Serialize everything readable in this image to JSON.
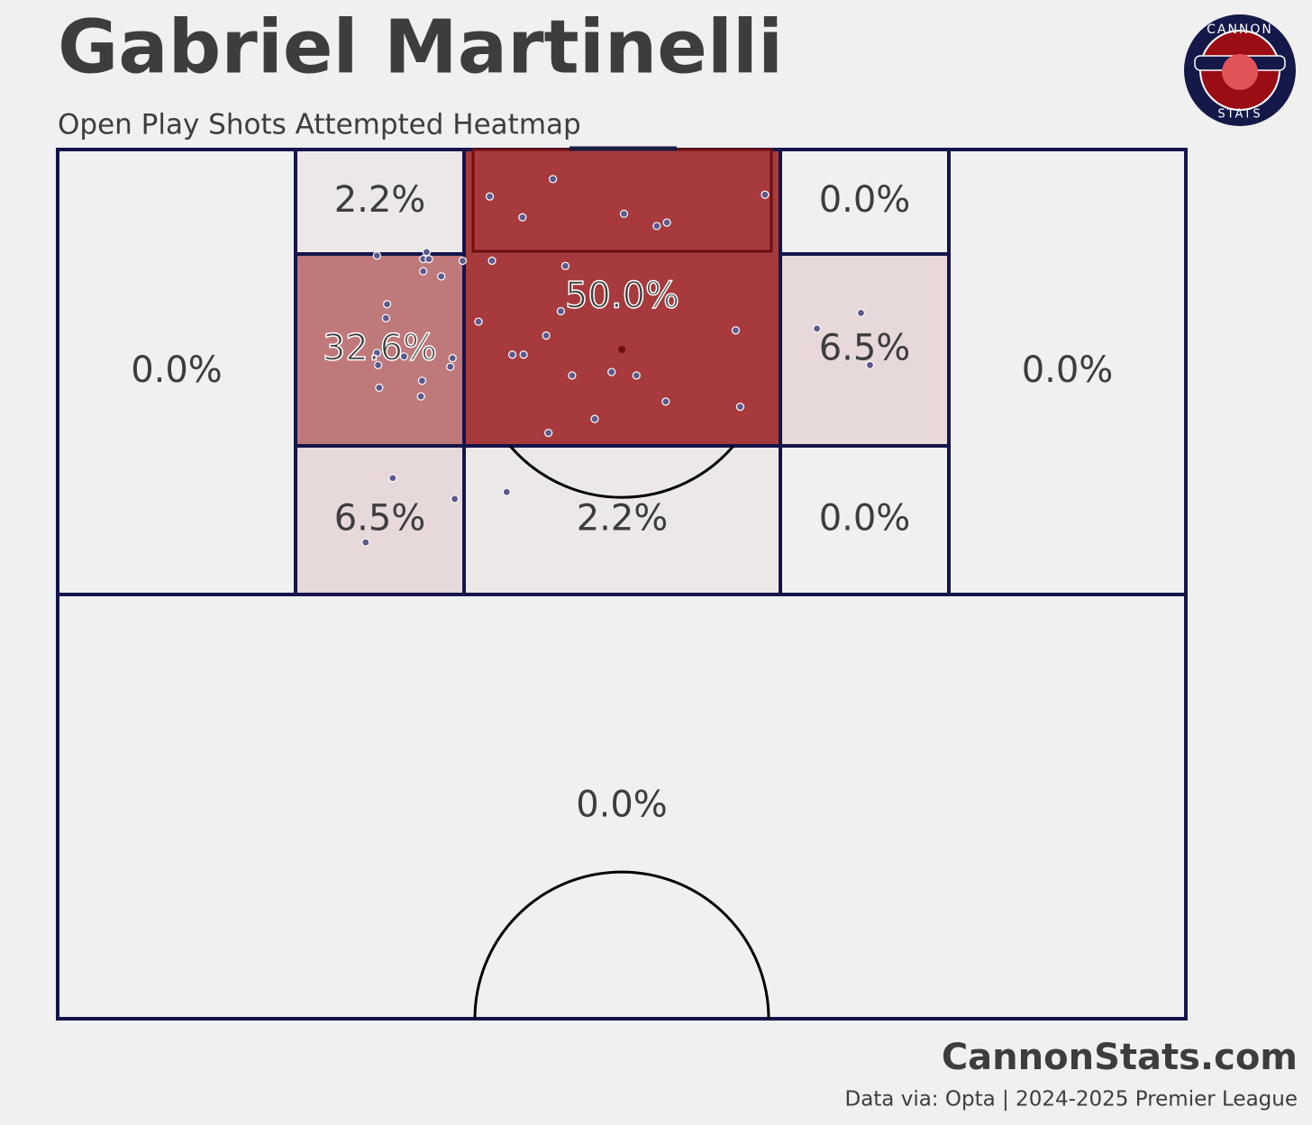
{
  "header": {
    "title": "Gabriel Martinelli",
    "subtitle": "Open Play Shots Attempted Heatmap"
  },
  "logo": {
    "top": "CANNON",
    "bottom": "STATS"
  },
  "zones": [
    {
      "value": 0.0,
      "label": "0.0%"
    },
    {
      "value": 2.2,
      "label": "2.2%"
    },
    {
      "value": 50.0,
      "label": "50.0%"
    },
    {
      "value": 0.0,
      "label": "0.0%"
    },
    {
      "value": 0.0,
      "label": "0.0%"
    },
    {
      "value": 32.6,
      "label": "32.6%"
    },
    {
      "value": 6.5,
      "label": "6.5%"
    },
    {
      "value": 6.5,
      "label": "6.5%"
    },
    {
      "value": 2.2,
      "label": "2.2%"
    },
    {
      "value": 0.0,
      "label": "0.0%"
    },
    {
      "value": 0.0,
      "label": "0.0%"
    }
  ],
  "shots": [
    [
      98.3,
      43.9
    ],
    [
      97.3,
      38.3
    ],
    [
      96.1,
      41.2
    ],
    [
      96.3,
      50.2
    ],
    [
      95.6,
      53.1
    ],
    [
      95.8,
      54.0
    ],
    [
      97.4,
      62.7
    ],
    [
      93.9,
      28.3
    ],
    [
      94.1,
      32.7
    ],
    [
      93.7,
      32.4
    ],
    [
      93.7,
      32.9
    ],
    [
      93.6,
      35.9
    ],
    [
      93.6,
      38.5
    ],
    [
      93.0,
      32.4
    ],
    [
      92.7,
      34.0
    ],
    [
      93.3,
      45.0
    ],
    [
      91.1,
      29.2
    ],
    [
      90.3,
      29.1
    ],
    [
      90.7,
      44.6
    ],
    [
      90.1,
      37.3
    ],
    [
      89.3,
      43.3
    ],
    [
      89.6,
      60.1
    ],
    [
      89.7,
      67.3
    ],
    [
      90.6,
      71.2
    ],
    [
      88.3,
      28.3
    ],
    [
      88.1,
      30.7
    ],
    [
      88.0,
      35.0
    ],
    [
      87.5,
      34.8
    ],
    [
      88.2,
      40.3
    ],
    [
      88.2,
      41.3
    ],
    [
      87.6,
      28.4
    ],
    [
      86.7,
      32.3
    ],
    [
      86.3,
      28.5
    ],
    [
      85.8,
      32.2
    ],
    [
      87.0,
      45.6
    ],
    [
      87.2,
      49.1
    ],
    [
      87.0,
      51.3
    ],
    [
      85.5,
      53.9
    ],
    [
      85.2,
      60.5
    ],
    [
      84.5,
      47.6
    ],
    [
      83.7,
      43.5
    ],
    [
      87.6,
      72.0
    ],
    [
      81.1,
      29.7
    ],
    [
      79.9,
      35.2
    ],
    [
      80.3,
      39.8
    ],
    [
      77.4,
      27.3
    ]
  ],
  "footer": {
    "brand": "CannonStats.com",
    "source": "Data via: Opta | 2024-2025 Premier League"
  }
}
